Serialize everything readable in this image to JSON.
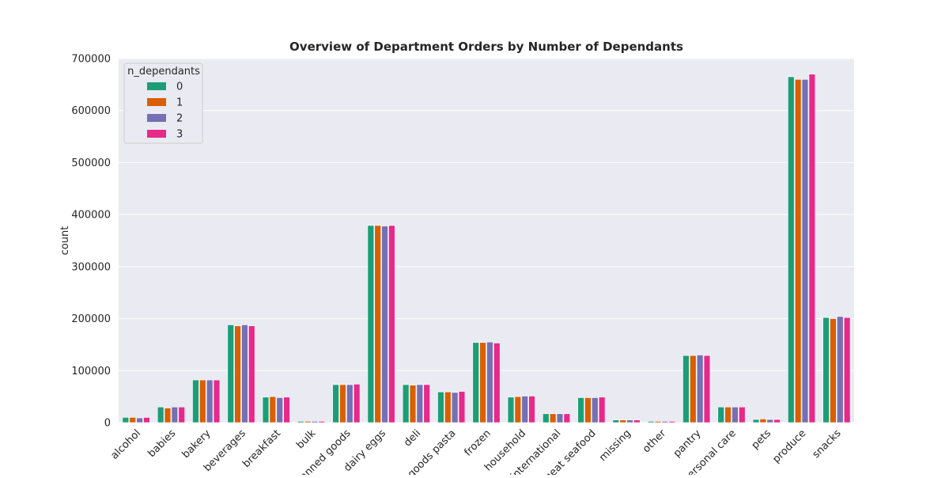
{
  "chart_data": {
    "type": "bar",
    "title": "Overview of Department Orders by Number of Dependants",
    "xlabel": "",
    "ylabel": "count",
    "ylim": [
      0,
      700000
    ],
    "yticks": [
      0,
      100000,
      200000,
      300000,
      400000,
      500000,
      600000,
      700000
    ],
    "grid": true,
    "legend": {
      "title": "n_dependants",
      "placement": "top-left"
    },
    "categories": [
      "alcohol",
      "babies",
      "bakery",
      "beverages",
      "breakfast",
      "bulk",
      "canned goods",
      "dairy eggs",
      "deli",
      "dry goods pasta",
      "frozen",
      "household",
      "international",
      "meat seafood",
      "missing",
      "other",
      "pantry",
      "personal care",
      "pets",
      "produce",
      "snacks"
    ],
    "series": [
      {
        "name": "0",
        "color": "#1b9e77",
        "values": [
          10000,
          30000,
          82000,
          188000,
          49000,
          2500,
          73000,
          379000,
          73000,
          59000,
          154000,
          49000,
          17000,
          48000,
          5000,
          2500,
          129000,
          30000,
          6000,
          665000,
          202000
        ]
      },
      {
        "name": "1",
        "color": "#d95f02",
        "values": [
          10000,
          28000,
          82000,
          186000,
          50000,
          2500,
          73000,
          379000,
          72000,
          59000,
          154000,
          50000,
          17000,
          48000,
          5000,
          2500,
          129000,
          30000,
          7000,
          660000,
          200000
        ]
      },
      {
        "name": "2",
        "color": "#7570b3",
        "values": [
          9000,
          30000,
          82000,
          188000,
          48000,
          2500,
          73000,
          378000,
          73000,
          58000,
          155000,
          51000,
          17000,
          48000,
          5000,
          2500,
          130000,
          30000,
          6000,
          660000,
          204000
        ]
      },
      {
        "name": "3",
        "color": "#e7298a",
        "values": [
          10000,
          30000,
          82000,
          186000,
          49000,
          2500,
          74000,
          379000,
          73000,
          60000,
          153000,
          51000,
          17000,
          49000,
          5000,
          2500,
          129000,
          30000,
          6000,
          670000,
          202000
        ]
      }
    ]
  },
  "colors": {
    "plot_background": "#eaeaf2",
    "grid": "#ffffff"
  }
}
